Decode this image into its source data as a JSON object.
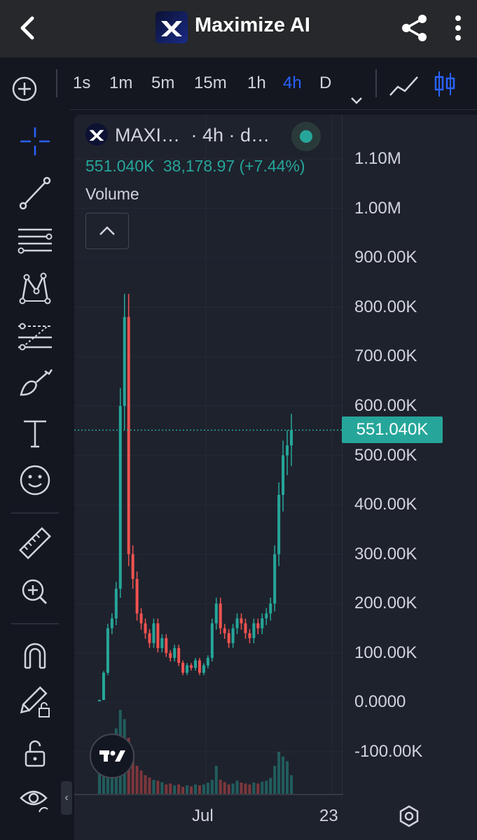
{
  "app": {
    "title": "Maximize AI"
  },
  "toolbar": {
    "intervals": [
      "1s",
      "1m",
      "5m",
      "15m",
      "1h",
      "4h",
      "D"
    ],
    "active_interval": "4h"
  },
  "legend": {
    "symbol": "MAXI…",
    "meta": "· 4h · d…",
    "price": "551.040K",
    "change": "38,178.97 (+7.44%)",
    "indicator": "Volume"
  },
  "price_axis": {
    "labels": [
      "1.10M",
      "1.00M",
      "900.00K",
      "800.00K",
      "700.00K",
      "600.00K",
      "500.00K",
      "400.00K",
      "300.00K",
      "200.00K",
      "100.00K",
      "0.0000",
      "-100.00K"
    ],
    "last_price": "551.040K"
  },
  "time_axis": {
    "labels": [
      "Jul",
      "23"
    ]
  },
  "colors": {
    "up": "#26a69a",
    "down": "#ef5350",
    "accent": "#2962ff"
  },
  "chart_data": {
    "type": "candlestick",
    "ylim": [
      -100000,
      1100000
    ],
    "y_ticks": [
      -100000,
      0,
      100000,
      200000,
      300000,
      400000,
      500000,
      600000,
      700000,
      800000,
      900000,
      1000000,
      1100000
    ],
    "x_labels": [
      "Jul",
      "23"
    ],
    "last_price": 551040,
    "change": 38178.97,
    "change_percent": 7.44,
    "series": [
      {
        "values": [
          5000,
          60000,
          150000,
          170000,
          230000,
          600000,
          780000,
          300000,
          250000,
          180000,
          160000,
          140000,
          120000,
          160000,
          110000,
          130000,
          100000,
          90000,
          110000,
          80000,
          60000,
          75000,
          70000,
          85000,
          60000,
          75000,
          90000,
          160000,
          200000,
          150000,
          140000,
          120000,
          150000,
          170000,
          160000,
          140000,
          130000,
          160000,
          150000,
          170000,
          180000,
          200000,
          300000,
          420000,
          500000,
          520000,
          551040
        ]
      }
    ],
    "volume": [
      50,
      80,
      120,
      90,
      140,
      180,
      160,
      120,
      90,
      60,
      50,
      40,
      35,
      30,
      28,
      25,
      20,
      22,
      18,
      20,
      15,
      18,
      16,
      20,
      18,
      20,
      24,
      30,
      60,
      30,
      25,
      20,
      22,
      28,
      24,
      22,
      20,
      24,
      22,
      26,
      28,
      34,
      60,
      90,
      80,
      70,
      40
    ]
  }
}
